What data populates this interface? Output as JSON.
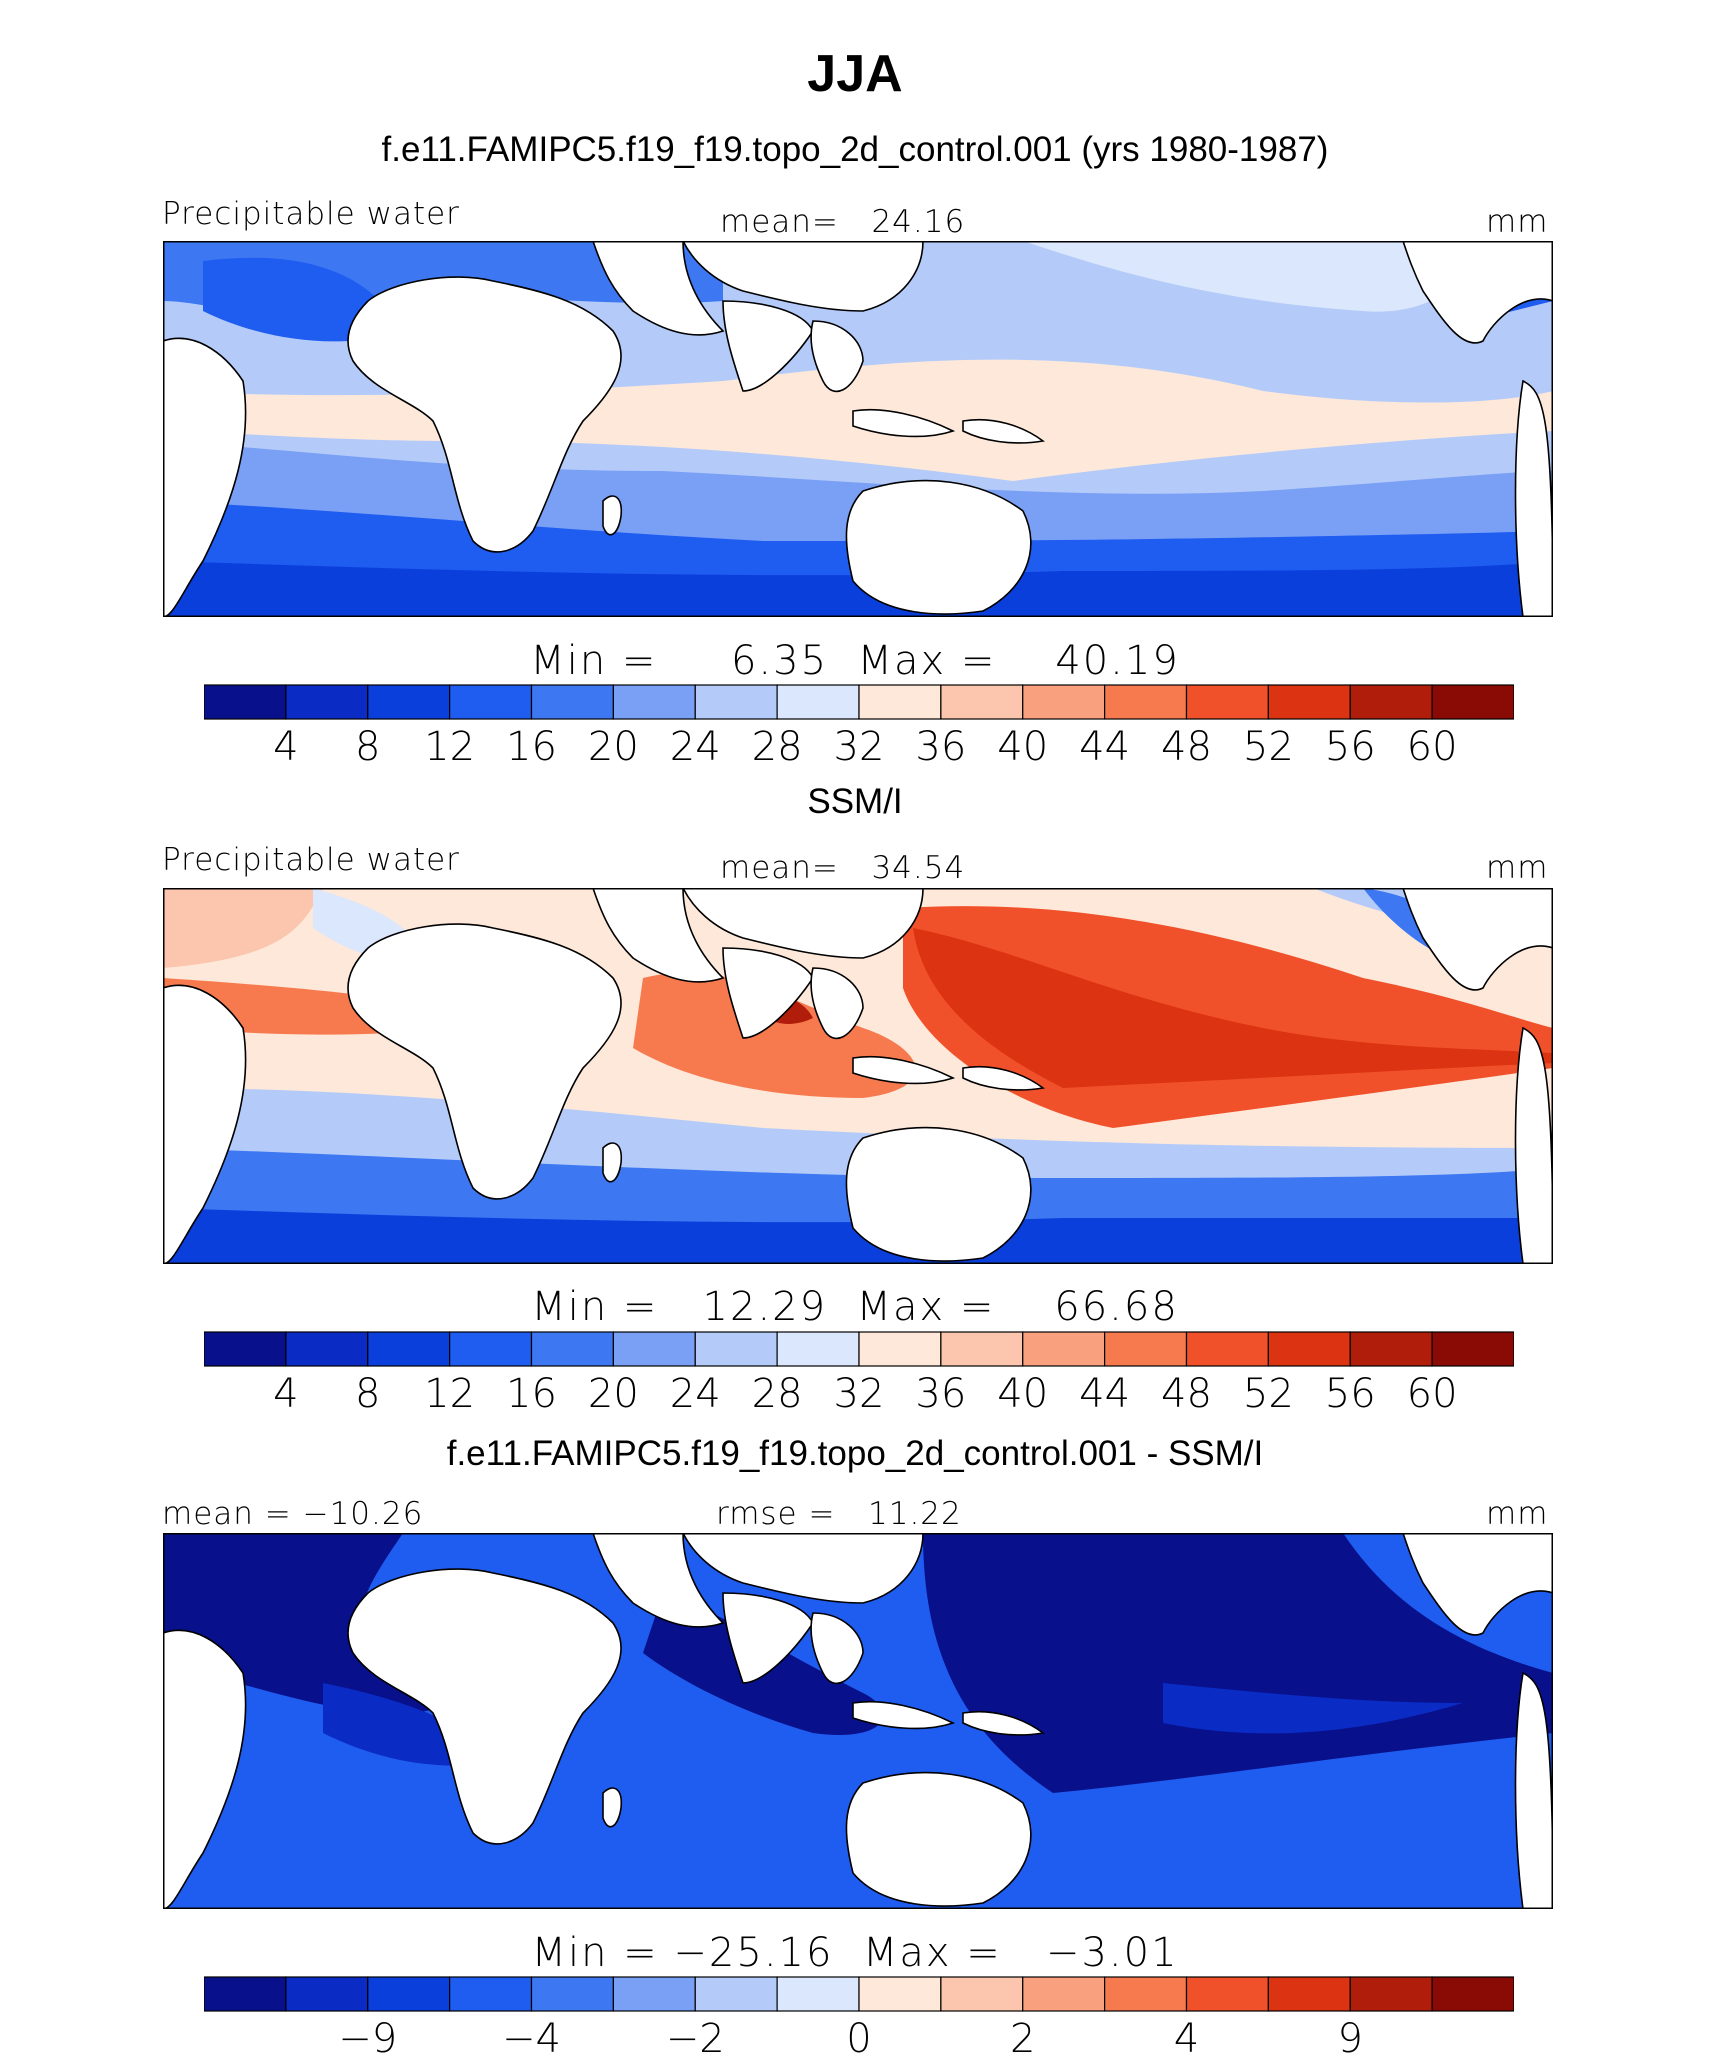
{
  "title": "JJA",
  "colors": {
    "palette": [
      "#08108c",
      "#0a2bc4",
      "#0b3fdc",
      "#1f5cf0",
      "#3d78f2",
      "#7aa0f5",
      "#b4cbf9",
      "#dbe7fc",
      "#fde8d9",
      "#fbc6ad",
      "#f9a07f",
      "#f77a4f",
      "#f1512a",
      "#dc3312",
      "#b11d0b",
      "#8a0b05"
    ],
    "land": "#ffffff",
    "coast": "#000000"
  },
  "panels": [
    {
      "id": "model",
      "subtitle": "f.e11.FAMIPC5.f19_f19.topo_2d_control.001 (yrs 1980-1987)",
      "left_label": "Precipitable water",
      "center_label": "mean=   24.16",
      "right_label": "mm",
      "minmax": "Min =     6.35  Max =    40.19",
      "colorbar_ticks": [
        "4",
        "8",
        "12",
        "16",
        "20",
        "24",
        "28",
        "32",
        "36",
        "40",
        "44",
        "48",
        "52",
        "56",
        "60"
      ]
    },
    {
      "id": "obs",
      "subtitle": "SSM/I",
      "left_label": "Precipitable water",
      "center_label": "mean=   34.54",
      "right_label": "mm",
      "minmax": "Min =   12.29  Max =    66.68",
      "colorbar_ticks": [
        "4",
        "8",
        "12",
        "16",
        "20",
        "24",
        "28",
        "32",
        "36",
        "40",
        "44",
        "48",
        "52",
        "56",
        "60"
      ]
    },
    {
      "id": "diff",
      "subtitle": "f.e11.FAMIPC5.f19_f19.topo_2d_control.001 - SSM/I",
      "left_label": "mean = −10.26",
      "center_label": "rmse =   11.22",
      "right_label": "mm",
      "minmax": "Min = −25.16  Max =   −3.01",
      "colorbar_ticks": [
        "−9",
        "−4",
        "−2",
        "0",
        "2",
        "4",
        "9"
      ]
    }
  ]
}
